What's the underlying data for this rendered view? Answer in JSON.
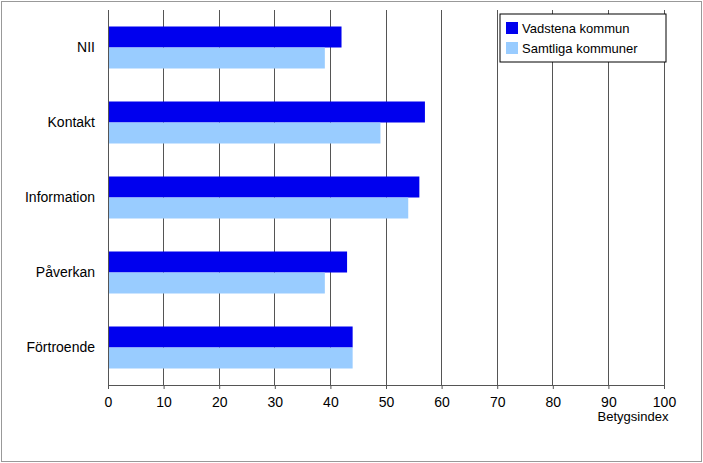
{
  "chart_data": {
    "type": "bar",
    "orientation": "horizontal",
    "categories": [
      "NII",
      "Kontakt",
      "Information",
      "Påverkan",
      "Förtroende"
    ],
    "series": [
      {
        "name": "Vadstena kommun",
        "color": "#0000ee",
        "values": [
          42,
          57,
          56,
          43,
          44
        ]
      },
      {
        "name": "Samtliga kommuner",
        "color": "#99ccff",
        "values": [
          39,
          49,
          54,
          39,
          44
        ]
      }
    ],
    "xlabel": "Betygsindex",
    "xlim": [
      0,
      100
    ],
    "xticks": [
      0,
      10,
      20,
      30,
      40,
      50,
      60,
      70,
      80,
      90,
      100
    ],
    "grid": true,
    "legend": "upper right"
  }
}
